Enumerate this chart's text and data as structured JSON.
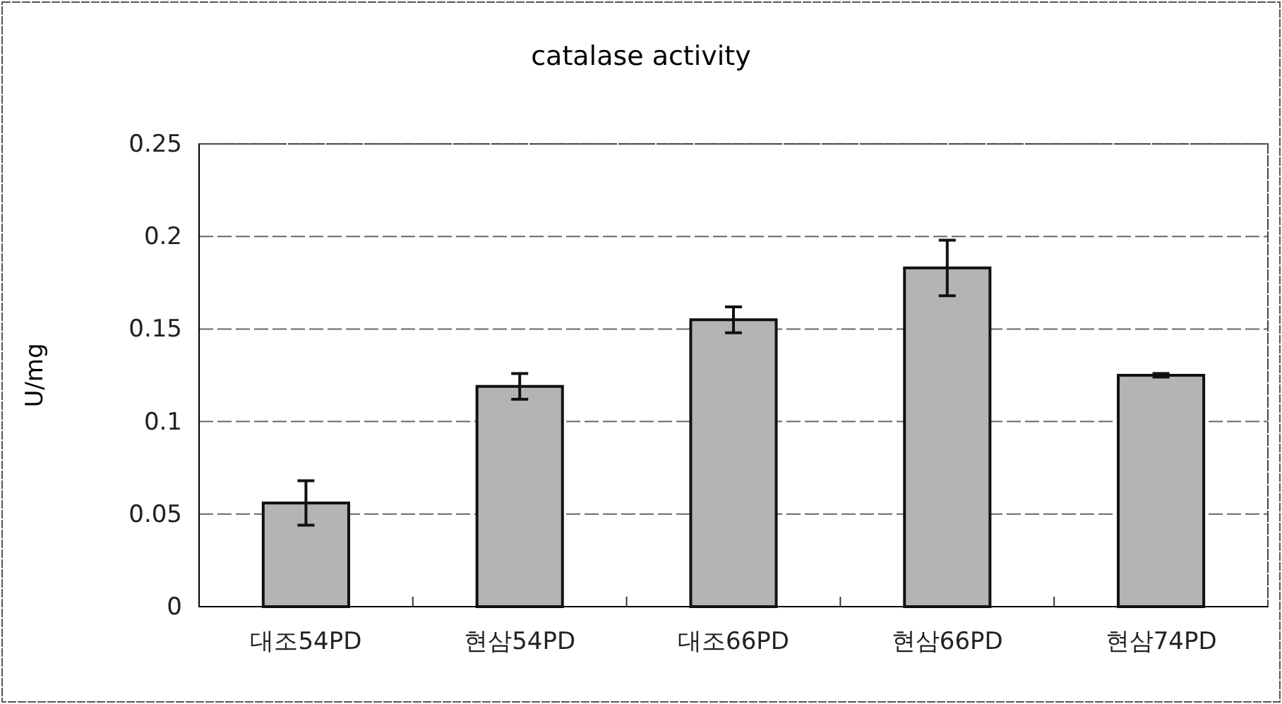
{
  "chart_data": {
    "type": "bar",
    "title": "catalase activity",
    "ylabel": "U/mg",
    "categories": [
      "대조54PD",
      "현삼54PD",
      "대조66PD",
      "현삼66PD",
      "현삼74PD"
    ],
    "values": [
      0.056,
      0.119,
      0.155,
      0.183,
      0.125
    ],
    "errors": [
      0.012,
      0.007,
      0.007,
      0.015,
      0.001
    ],
    "color": "#b4b4b4",
    "ylim": [
      0,
      0.25
    ],
    "yticks": [
      0,
      0.05,
      0.1,
      0.15,
      0.2,
      0.25
    ],
    "grid": "y"
  }
}
